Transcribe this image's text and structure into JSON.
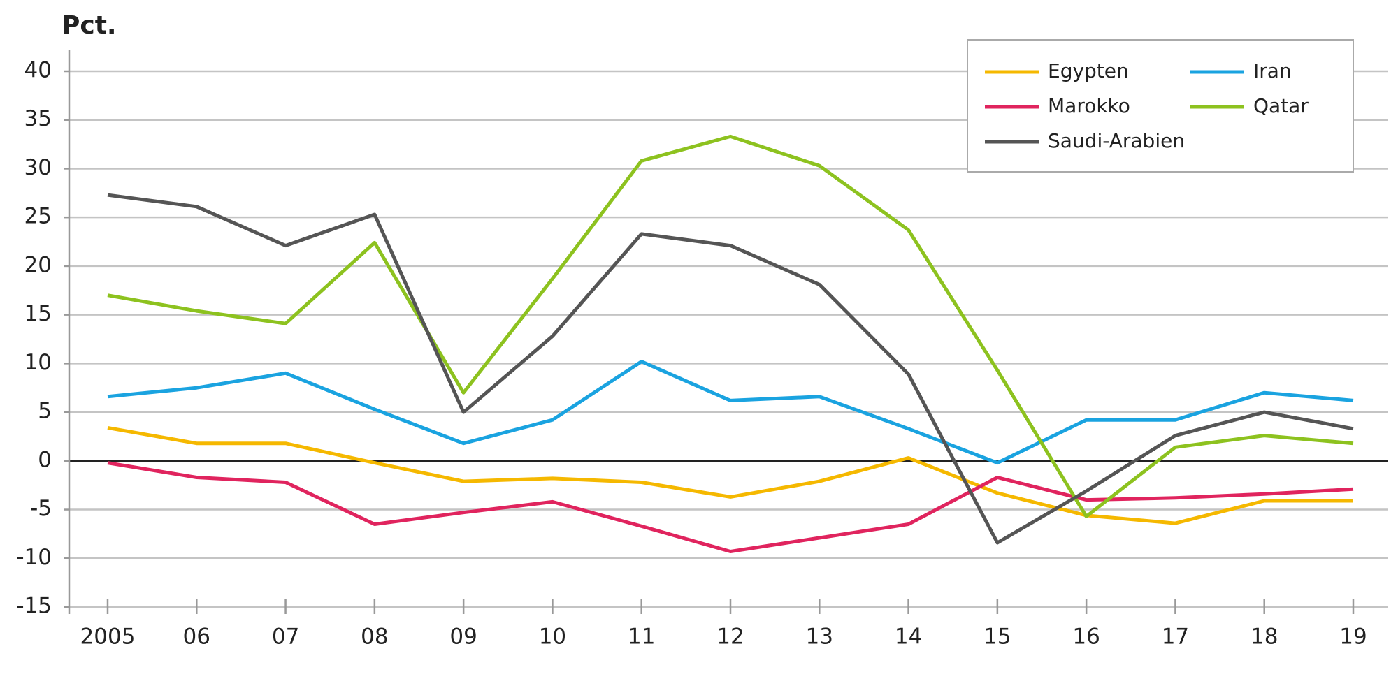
{
  "chart_data": {
    "type": "line",
    "title": "Pct.",
    "categories": [
      "2005",
      "06",
      "07",
      "08",
      "09",
      "10",
      "11",
      "12",
      "13",
      "14",
      "15",
      "16",
      "17",
      "18",
      "19"
    ],
    "series": [
      {
        "name": "Egypten",
        "color": "#f5b800",
        "values": [
          3.4,
          1.8,
          1.8,
          -0.2,
          -2.1,
          -1.8,
          -2.2,
          -3.7,
          -2.1,
          0.3,
          -3.3,
          -5.6,
          -6.4,
          -4.1,
          -4.1
        ]
      },
      {
        "name": "Iran",
        "color": "#1aa3e0",
        "values": [
          6.6,
          7.5,
          9.0,
          5.3,
          1.8,
          4.2,
          10.2,
          6.2,
          6.6,
          3.3,
          -0.2,
          4.2,
          4.2,
          7.0,
          6.2
        ]
      },
      {
        "name": "Marokko",
        "color": "#e0245e",
        "values": [
          -0.2,
          -1.7,
          -2.2,
          -6.5,
          -5.3,
          -4.2,
          -6.7,
          -9.3,
          -7.9,
          -6.5,
          -1.7,
          -4.0,
          -3.8,
          -3.4,
          -2.9
        ]
      },
      {
        "name": "Qatar",
        "color": "#8dc21f",
        "values": [
          17.0,
          15.4,
          14.1,
          22.4,
          7.0,
          18.7,
          30.8,
          33.3,
          30.3,
          23.7,
          9.3,
          -5.7,
          1.4,
          2.6,
          1.8
        ]
      },
      {
        "name": "Saudi-Arabien",
        "color": "#555555",
        "values": [
          27.3,
          26.1,
          22.1,
          25.3,
          5.0,
          12.8,
          23.3,
          22.1,
          18.1,
          8.9,
          -8.4,
          -3.1,
          2.6,
          5.0,
          3.3
        ]
      }
    ],
    "ylim": [
      -15,
      40
    ],
    "yticks": [
      -15,
      -10,
      -5,
      0,
      5,
      10,
      15,
      20,
      25,
      30,
      35,
      40
    ],
    "grid": true,
    "legend": "upper right"
  }
}
